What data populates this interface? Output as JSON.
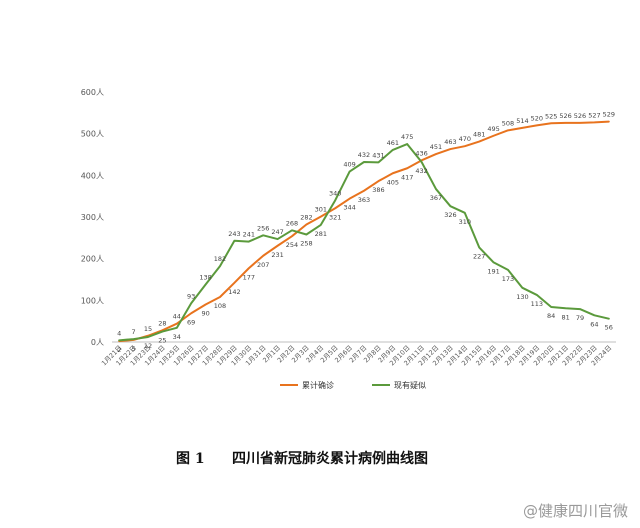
{
  "caption": {
    "number": "图 1",
    "title": "四川省新冠肺炎累计病例曲线图"
  },
  "watermark": "@健康四川官微",
  "chart_data": {
    "type": "line",
    "title": "",
    "xlabel": "",
    "ylabel": "",
    "ylim": [
      0,
      600
    ],
    "y_ticks": [
      "0人",
      "100人",
      "200人",
      "300人",
      "400人",
      "500人",
      "600人"
    ],
    "y_tick_values": [
      0,
      100,
      200,
      300,
      400,
      500,
      600
    ],
    "grid": false,
    "legend_position": "bottom",
    "categories": [
      "1月21日",
      "1月22日",
      "1月23日",
      "1月24日",
      "1月25日",
      "1月26日",
      "1月27日",
      "1月28日",
      "1月29日",
      "1月30日",
      "1月31日",
      "2月1日",
      "2月2日",
      "2月3日",
      "2月4日",
      "2月5日",
      "2月6日",
      "2月7日",
      "2月8日",
      "2月9日",
      "2月10日",
      "2月11日",
      "2月12日",
      "2月13日",
      "2月14日",
      "2月15日",
      "2月16日",
      "2月17日",
      "2月18日",
      "2月19日",
      "2月20日",
      "2月21日",
      "2月22日",
      "2月23日",
      "2月24日"
    ],
    "series": [
      {
        "name": "累计确诊",
        "color": "#e8731e",
        "values": [
          2,
          5,
          15,
          28,
          44,
          69,
          90,
          108,
          142,
          177,
          207,
          231,
          254,
          282,
          301,
          321,
          344,
          363,
          386,
          405,
          417,
          436,
          451,
          463,
          470,
          481,
          495,
          508,
          514,
          520,
          525,
          526,
          526,
          527,
          529
        ]
      },
      {
        "name": "现有疑似",
        "color": "#5b9a3c",
        "values": [
          4,
          7,
          12,
          25,
          34,
          93,
          138,
          182,
          243,
          241,
          256,
          247,
          268,
          258,
          281,
          340,
          409,
          432,
          431,
          461,
          475,
          432,
          367,
          326,
          310,
          227,
          191,
          173,
          130,
          113,
          84,
          81,
          79,
          64,
          56
        ]
      }
    ]
  }
}
